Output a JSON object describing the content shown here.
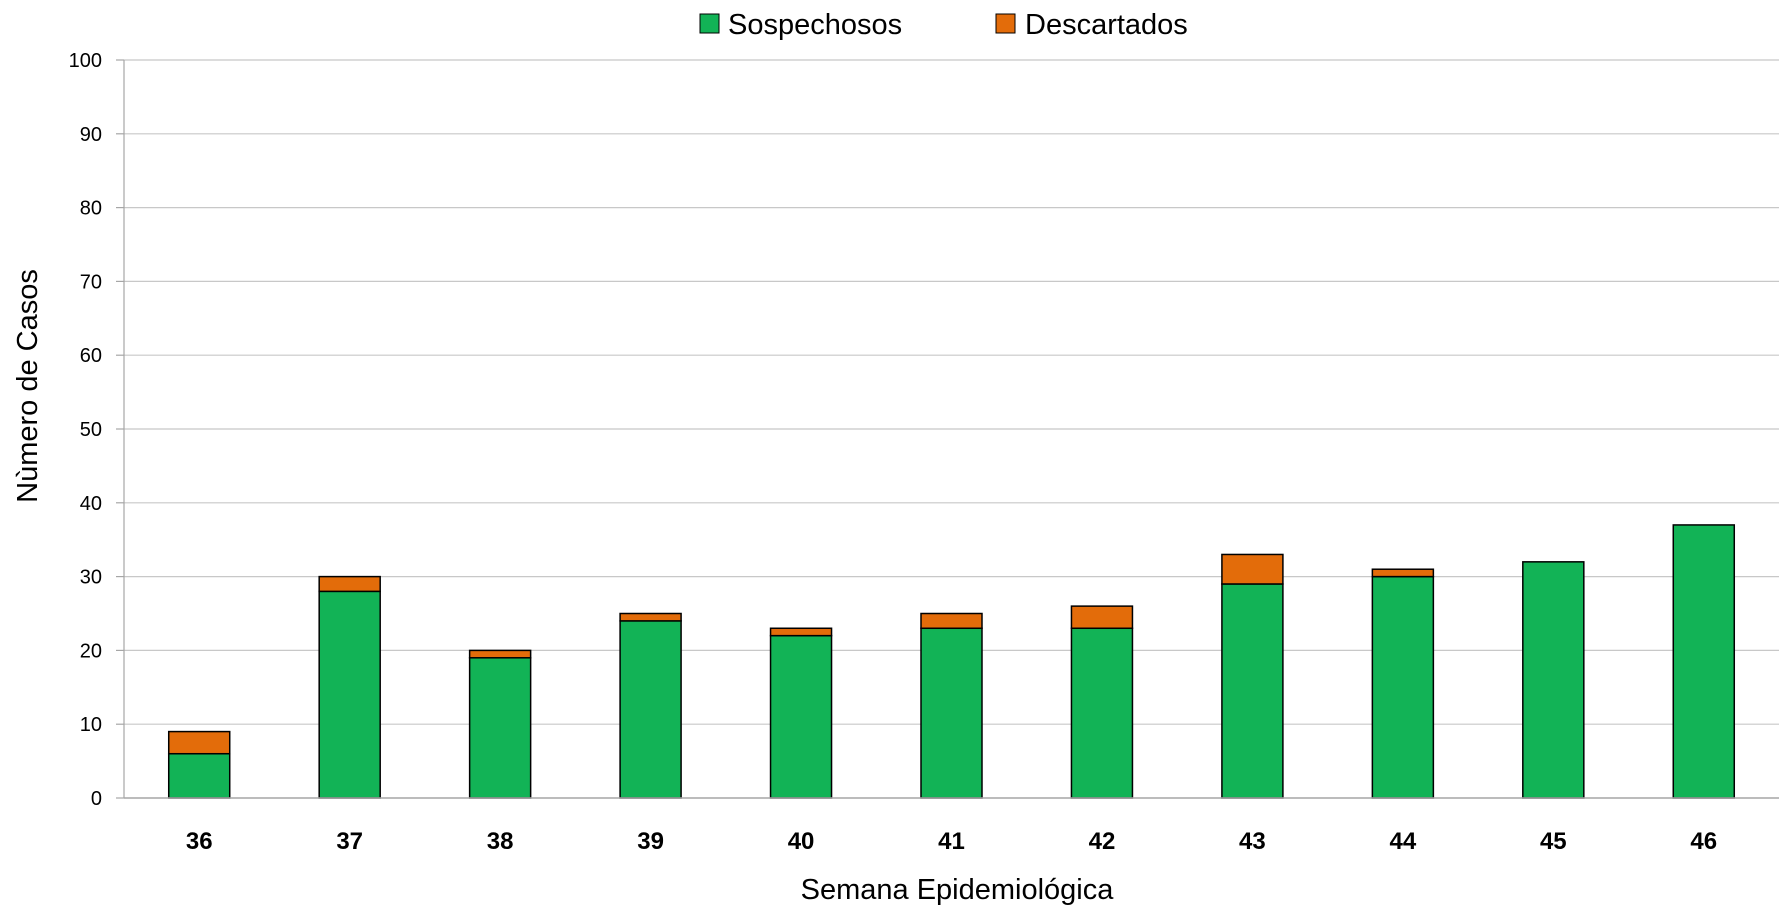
{
  "chart_data": {
    "type": "bar",
    "stacked": true,
    "categories": [
      "36",
      "37",
      "38",
      "39",
      "40",
      "41",
      "42",
      "43",
      "44",
      "45",
      "46"
    ],
    "series": [
      {
        "name": "Sospechosos",
        "color": "#12b356",
        "values": [
          6,
          28,
          19,
          24,
          22,
          23,
          23,
          29,
          30,
          32,
          37
        ]
      },
      {
        "name": "Descartados",
        "color": "#e36c0a",
        "values": [
          3,
          2,
          1,
          1,
          1,
          2,
          3,
          4,
          1,
          0,
          0
        ]
      }
    ],
    "xlabel": "Semana Epidemiológica",
    "ylabel": "Nùmero de Casos",
    "ylim": [
      0,
      100
    ],
    "yticks": [
      "0",
      "10",
      "20",
      "30",
      "40",
      "50",
      "60",
      "70",
      "80",
      "90",
      "100"
    ],
    "grid": true,
    "legend_position": "top"
  }
}
